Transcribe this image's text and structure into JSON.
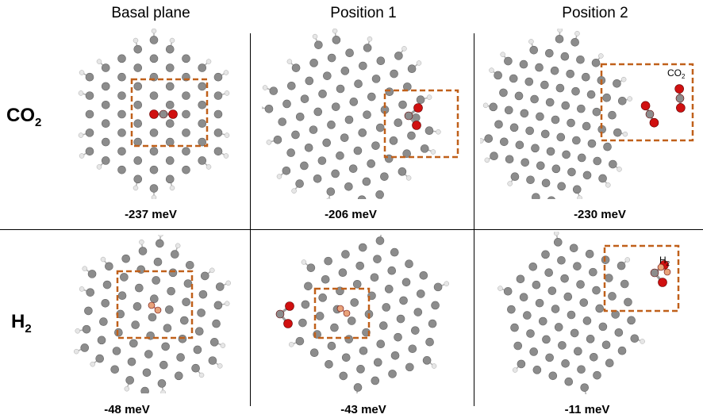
{
  "columns": [
    "Basal plane",
    "Position 1",
    "Position 2"
  ],
  "rows": [
    {
      "molecule": "CO",
      "subscript": "2"
    },
    {
      "molecule": "H",
      "subscript": "2"
    }
  ],
  "energies": {
    "co2": [
      "-237 meV",
      "-206 meV",
      "-230 meV"
    ],
    "h2": [
      "-48 meV",
      "-43 meV",
      "-11 meV"
    ]
  },
  "annotations": {
    "co2_label": "CO",
    "co2_label_sub": "2",
    "h2_label": "H",
    "h2_label_sub": "2"
  },
  "colors": {
    "carbon": "#8c8c8c",
    "hydrogen": "#e6e6e6",
    "oxygen": "#d01010",
    "adsorbed_h": "#e8a27a",
    "highlight_box": "#c0601a"
  }
}
